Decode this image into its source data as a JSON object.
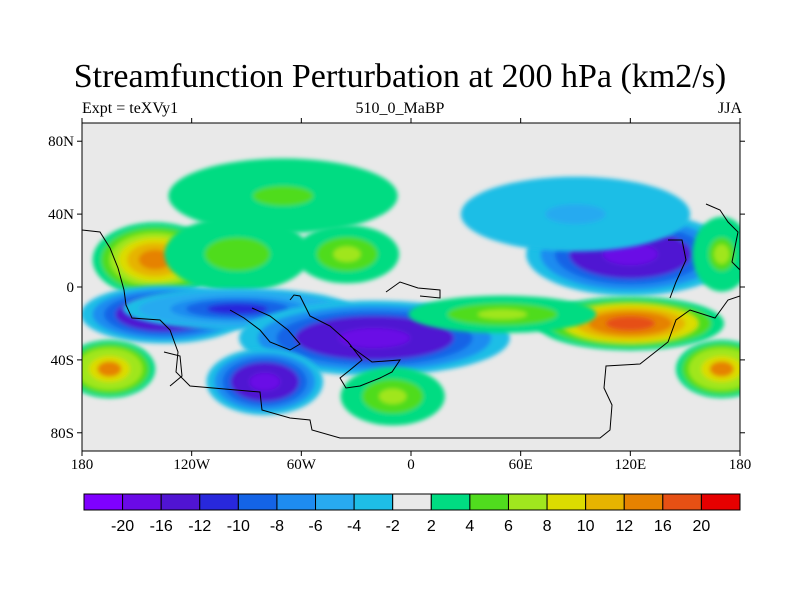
{
  "title": "Streamfunction Perturbation at 200 hPa (km2/s)",
  "subtitle_left": "Expt = teXVy1",
  "subtitle_center": "510_0_MaBP",
  "subtitle_right": "JJA",
  "colors": {
    "background_field": "#e9e9e9",
    "coast": "#000000"
  },
  "chart_data": {
    "type": "heatmap",
    "title": "Streamfunction Perturbation at 200 hPa (km2/s)",
    "units": "km2/s",
    "xlim": [
      -180,
      180
    ],
    "ylim": [
      -90,
      90
    ],
    "x_ticks": [
      {
        "value": -180,
        "label": "180"
      },
      {
        "value": -120,
        "label": "120W"
      },
      {
        "value": -60,
        "label": "60W"
      },
      {
        "value": 0,
        "label": "0"
      },
      {
        "value": 60,
        "label": "60E"
      },
      {
        "value": 120,
        "label": "120E"
      },
      {
        "value": 180,
        "label": "180"
      }
    ],
    "y_ticks": [
      {
        "value": 80,
        "label": "80N"
      },
      {
        "value": 40,
        "label": "40N"
      },
      {
        "value": 0,
        "label": "0"
      },
      {
        "value": -40,
        "label": "40S"
      },
      {
        "value": -80,
        "label": "80S"
      }
    ],
    "colorbar": {
      "levels": [
        "-20",
        "-16",
        "-12",
        "-10",
        "-8",
        "-6",
        "-4",
        "-2",
        "2",
        "4",
        "6",
        "8",
        "10",
        "12",
        "16",
        "20"
      ],
      "colors": [
        "#7f00ff",
        "#6a0ae6",
        "#5014d2",
        "#2828dc",
        "#1464e6",
        "#1e8cf0",
        "#28aaf0",
        "#1ebee6",
        "#e9e9e9",
        "#00dc82",
        "#50dc1e",
        "#a0e61e",
        "#dcdc00",
        "#e6b400",
        "#e68200",
        "#e65014",
        "#e60000"
      ]
    },
    "features": [
      {
        "lon": -140,
        "lat": 15,
        "rx": 30,
        "ry": 18,
        "value": 14
      },
      {
        "lon": -95,
        "lat": 18,
        "rx": 35,
        "ry": 18,
        "value": 5
      },
      {
        "lon": -35,
        "lat": 18,
        "rx": 25,
        "ry": 14,
        "value": 7
      },
      {
        "lon": -70,
        "lat": 50,
        "rx": 55,
        "ry": 18,
        "value": 4
      },
      {
        "lon": -135,
        "lat": -15,
        "rx": 40,
        "ry": 14,
        "value": -20
      },
      {
        "lon": -95,
        "lat": -12,
        "rx": 55,
        "ry": 10,
        "value": -12
      },
      {
        "lon": -20,
        "lat": -28,
        "rx": 65,
        "ry": 18,
        "value": -20
      },
      {
        "lon": -80,
        "lat": -52,
        "rx": 28,
        "ry": 16,
        "value": -20
      },
      {
        "lon": -165,
        "lat": -45,
        "rx": 22,
        "ry": 14,
        "value": 12
      },
      {
        "lon": -10,
        "lat": -60,
        "rx": 25,
        "ry": 14,
        "value": 7
      },
      {
        "lon": 120,
        "lat": 18,
        "rx": 50,
        "ry": 20,
        "value": -20
      },
      {
        "lon": 90,
        "lat": 40,
        "rx": 55,
        "ry": 18,
        "value": -5
      },
      {
        "lon": 120,
        "lat": -20,
        "rx": 45,
        "ry": 13,
        "value": 16
      },
      {
        "lon": 50,
        "lat": -15,
        "rx": 45,
        "ry": 9,
        "value": 7
      },
      {
        "lon": 170,
        "lat": -45,
        "rx": 22,
        "ry": 14,
        "value": 12
      },
      {
        "lon": 170,
        "lat": 18,
        "rx": 14,
        "ry": 18,
        "value": 6
      }
    ]
  }
}
